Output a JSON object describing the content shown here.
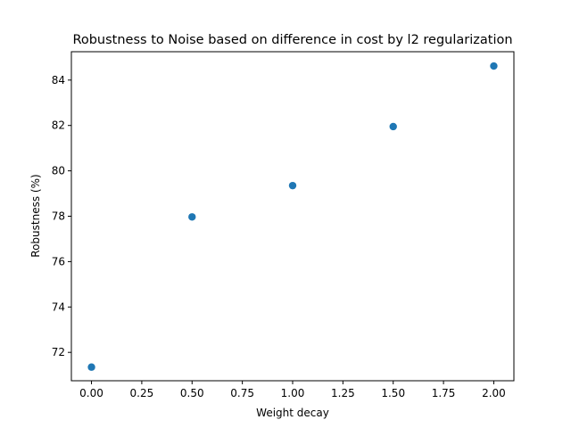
{
  "chart_data": {
    "type": "scatter",
    "title": "Robustness to Noise based on difference in cost by l2 regularization",
    "xlabel": "Weight decay",
    "ylabel": "Robustness (%)",
    "xlim": [
      -0.1,
      2.1
    ],
    "ylim": [
      70.75,
      85.25
    ],
    "xticks": [
      0.0,
      0.25,
      0.5,
      0.75,
      1.0,
      1.25,
      1.5,
      1.75,
      2.0
    ],
    "xtick_labels": [
      "0.00",
      "0.25",
      "0.50",
      "0.75",
      "1.00",
      "1.25",
      "1.50",
      "1.75",
      "2.00"
    ],
    "yticks": [
      72,
      74,
      76,
      78,
      80,
      82,
      84
    ],
    "ytick_labels": [
      "72",
      "74",
      "76",
      "78",
      "80",
      "82",
      "84"
    ],
    "grid": false,
    "legend": "none",
    "marker_color": "#1f77b4",
    "series": [
      {
        "x": [
          0.0,
          0.5,
          1.0,
          1.5,
          2.0
        ],
        "y": [
          71.35,
          77.97,
          79.35,
          81.95,
          84.62
        ]
      }
    ]
  }
}
